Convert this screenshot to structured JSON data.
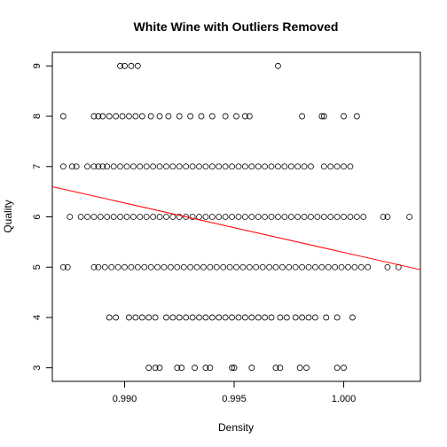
{
  "chart_data": {
    "type": "scatter",
    "title": "White Wine with Outliers Removed",
    "xlabel": "Density",
    "ylabel": "Quality",
    "xlim": [
      0.9867,
      1.0035
    ],
    "ylim": [
      2.73,
      9.27
    ],
    "xticks": [
      0.99,
      0.995,
      1.0
    ],
    "xtick_labels": [
      "0.990",
      "0.995",
      "1.000"
    ],
    "yticks": [
      3,
      4,
      5,
      6,
      7,
      8,
      9
    ],
    "ytick_labels": [
      "3",
      "4",
      "5",
      "6",
      "7",
      "8",
      "9"
    ],
    "grid": false,
    "legend": "none",
    "point_color": "#000000",
    "line_color": "#ff0000",
    "regression_line": {
      "x": [
        0.9867,
        1.0035
      ],
      "y": [
        6.6,
        4.95
      ]
    },
    "points": [
      {
        "x": 0.9898,
        "y": 9
      },
      {
        "x": 0.99,
        "y": 9
      },
      {
        "x": 0.9903,
        "y": 9
      },
      {
        "x": 0.9906,
        "y": 9
      },
      {
        "x": 0.997,
        "y": 9
      },
      {
        "x": 0.9872,
        "y": 8
      },
      {
        "x": 0.9886,
        "y": 8
      },
      {
        "x": 0.9888,
        "y": 8
      },
      {
        "x": 0.989,
        "y": 8
      },
      {
        "x": 0.9893,
        "y": 8
      },
      {
        "x": 0.9896,
        "y": 8
      },
      {
        "x": 0.9899,
        "y": 8
      },
      {
        "x": 0.9902,
        "y": 8
      },
      {
        "x": 0.9905,
        "y": 8
      },
      {
        "x": 0.9908,
        "y": 8
      },
      {
        "x": 0.9912,
        "y": 8
      },
      {
        "x": 0.9916,
        "y": 8
      },
      {
        "x": 0.992,
        "y": 8
      },
      {
        "x": 0.9925,
        "y": 8
      },
      {
        "x": 0.993,
        "y": 8
      },
      {
        "x": 0.9935,
        "y": 8
      },
      {
        "x": 0.994,
        "y": 8
      },
      {
        "x": 0.9946,
        "y": 8
      },
      {
        "x": 0.9951,
        "y": 8
      },
      {
        "x": 0.9955,
        "y": 8
      },
      {
        "x": 0.9957,
        "y": 8
      },
      {
        "x": 0.9981,
        "y": 8
      },
      {
        "x": 0.999,
        "y": 8
      },
      {
        "x": 0.9991,
        "y": 8
      },
      {
        "x": 1.0,
        "y": 8
      },
      {
        "x": 1.0006,
        "y": 8
      },
      {
        "x": 0.9872,
        "y": 7
      },
      {
        "x": 0.9876,
        "y": 7
      },
      {
        "x": 0.9878,
        "y": 7
      },
      {
        "x": 0.9883,
        "y": 7
      },
      {
        "x": 0.9886,
        "y": 7
      },
      {
        "x": 0.9888,
        "y": 7
      },
      {
        "x": 0.989,
        "y": 7
      },
      {
        "x": 0.9892,
        "y": 7
      },
      {
        "x": 0.9895,
        "y": 7
      },
      {
        "x": 0.9898,
        "y": 7
      },
      {
        "x": 0.9901,
        "y": 7
      },
      {
        "x": 0.9904,
        "y": 7
      },
      {
        "x": 0.9907,
        "y": 7
      },
      {
        "x": 0.991,
        "y": 7
      },
      {
        "x": 0.9913,
        "y": 7
      },
      {
        "x": 0.9916,
        "y": 7
      },
      {
        "x": 0.9919,
        "y": 7
      },
      {
        "x": 0.9922,
        "y": 7
      },
      {
        "x": 0.9925,
        "y": 7
      },
      {
        "x": 0.9928,
        "y": 7
      },
      {
        "x": 0.9931,
        "y": 7
      },
      {
        "x": 0.9934,
        "y": 7
      },
      {
        "x": 0.9937,
        "y": 7
      },
      {
        "x": 0.994,
        "y": 7
      },
      {
        "x": 0.9943,
        "y": 7
      },
      {
        "x": 0.9946,
        "y": 7
      },
      {
        "x": 0.9949,
        "y": 7
      },
      {
        "x": 0.9952,
        "y": 7
      },
      {
        "x": 0.9955,
        "y": 7
      },
      {
        "x": 0.9958,
        "y": 7
      },
      {
        "x": 0.9961,
        "y": 7
      },
      {
        "x": 0.9964,
        "y": 7
      },
      {
        "x": 0.9967,
        "y": 7
      },
      {
        "x": 0.997,
        "y": 7
      },
      {
        "x": 0.9973,
        "y": 7
      },
      {
        "x": 0.9976,
        "y": 7
      },
      {
        "x": 0.9979,
        "y": 7
      },
      {
        "x": 0.9982,
        "y": 7
      },
      {
        "x": 0.9985,
        "y": 7
      },
      {
        "x": 0.9991,
        "y": 7
      },
      {
        "x": 0.9994,
        "y": 7
      },
      {
        "x": 0.9997,
        "y": 7
      },
      {
        "x": 1.0,
        "y": 7
      },
      {
        "x": 1.0003,
        "y": 7
      },
      {
        "x": 0.9875,
        "y": 6
      },
      {
        "x": 0.988,
        "y": 6
      },
      {
        "x": 0.9883,
        "y": 6
      },
      {
        "x": 0.9886,
        "y": 6
      },
      {
        "x": 0.9889,
        "y": 6
      },
      {
        "x": 0.9892,
        "y": 6
      },
      {
        "x": 0.9895,
        "y": 6
      },
      {
        "x": 0.9898,
        "y": 6
      },
      {
        "x": 0.9901,
        "y": 6
      },
      {
        "x": 0.9904,
        "y": 6
      },
      {
        "x": 0.9907,
        "y": 6
      },
      {
        "x": 0.991,
        "y": 6
      },
      {
        "x": 0.9913,
        "y": 6
      },
      {
        "x": 0.9916,
        "y": 6
      },
      {
        "x": 0.9919,
        "y": 6
      },
      {
        "x": 0.9922,
        "y": 6
      },
      {
        "x": 0.9925,
        "y": 6
      },
      {
        "x": 0.9928,
        "y": 6
      },
      {
        "x": 0.9931,
        "y": 6
      },
      {
        "x": 0.9934,
        "y": 6
      },
      {
        "x": 0.9937,
        "y": 6
      },
      {
        "x": 0.994,
        "y": 6
      },
      {
        "x": 0.9943,
        "y": 6
      },
      {
        "x": 0.9946,
        "y": 6
      },
      {
        "x": 0.9949,
        "y": 6
      },
      {
        "x": 0.9952,
        "y": 6
      },
      {
        "x": 0.9955,
        "y": 6
      },
      {
        "x": 0.9958,
        "y": 6
      },
      {
        "x": 0.9961,
        "y": 6
      },
      {
        "x": 0.9964,
        "y": 6
      },
      {
        "x": 0.9967,
        "y": 6
      },
      {
        "x": 0.997,
        "y": 6
      },
      {
        "x": 0.9973,
        "y": 6
      },
      {
        "x": 0.9976,
        "y": 6
      },
      {
        "x": 0.9979,
        "y": 6
      },
      {
        "x": 0.9982,
        "y": 6
      },
      {
        "x": 0.9985,
        "y": 6
      },
      {
        "x": 0.9988,
        "y": 6
      },
      {
        "x": 0.9991,
        "y": 6
      },
      {
        "x": 0.9994,
        "y": 6
      },
      {
        "x": 0.9997,
        "y": 6
      },
      {
        "x": 1.0,
        "y": 6
      },
      {
        "x": 1.0003,
        "y": 6
      },
      {
        "x": 1.0006,
        "y": 6
      },
      {
        "x": 1.0009,
        "y": 6
      },
      {
        "x": 1.0018,
        "y": 6
      },
      {
        "x": 1.002,
        "y": 6
      },
      {
        "x": 1.003,
        "y": 6
      },
      {
        "x": 0.9872,
        "y": 5
      },
      {
        "x": 0.9874,
        "y": 5
      },
      {
        "x": 0.9886,
        "y": 5
      },
      {
        "x": 0.9888,
        "y": 5
      },
      {
        "x": 0.9891,
        "y": 5
      },
      {
        "x": 0.9894,
        "y": 5
      },
      {
        "x": 0.9897,
        "y": 5
      },
      {
        "x": 0.99,
        "y": 5
      },
      {
        "x": 0.9903,
        "y": 5
      },
      {
        "x": 0.9906,
        "y": 5
      },
      {
        "x": 0.9909,
        "y": 5
      },
      {
        "x": 0.9912,
        "y": 5
      },
      {
        "x": 0.9915,
        "y": 5
      },
      {
        "x": 0.9918,
        "y": 5
      },
      {
        "x": 0.9921,
        "y": 5
      },
      {
        "x": 0.9924,
        "y": 5
      },
      {
        "x": 0.9927,
        "y": 5
      },
      {
        "x": 0.993,
        "y": 5
      },
      {
        "x": 0.9933,
        "y": 5
      },
      {
        "x": 0.9936,
        "y": 5
      },
      {
        "x": 0.9939,
        "y": 5
      },
      {
        "x": 0.9942,
        "y": 5
      },
      {
        "x": 0.9945,
        "y": 5
      },
      {
        "x": 0.9948,
        "y": 5
      },
      {
        "x": 0.9951,
        "y": 5
      },
      {
        "x": 0.9954,
        "y": 5
      },
      {
        "x": 0.9957,
        "y": 5
      },
      {
        "x": 0.996,
        "y": 5
      },
      {
        "x": 0.9963,
        "y": 5
      },
      {
        "x": 0.9966,
        "y": 5
      },
      {
        "x": 0.9969,
        "y": 5
      },
      {
        "x": 0.9972,
        "y": 5
      },
      {
        "x": 0.9975,
        "y": 5
      },
      {
        "x": 0.9978,
        "y": 5
      },
      {
        "x": 0.9981,
        "y": 5
      },
      {
        "x": 0.9984,
        "y": 5
      },
      {
        "x": 0.9987,
        "y": 5
      },
      {
        "x": 0.999,
        "y": 5
      },
      {
        "x": 0.9993,
        "y": 5
      },
      {
        "x": 0.9996,
        "y": 5
      },
      {
        "x": 0.9999,
        "y": 5
      },
      {
        "x": 1.0002,
        "y": 5
      },
      {
        "x": 1.0005,
        "y": 5
      },
      {
        "x": 1.0008,
        "y": 5
      },
      {
        "x": 1.0011,
        "y": 5
      },
      {
        "x": 1.002,
        "y": 5
      },
      {
        "x": 1.0025,
        "y": 5
      },
      {
        "x": 0.9893,
        "y": 4
      },
      {
        "x": 0.9896,
        "y": 4
      },
      {
        "x": 0.9902,
        "y": 4
      },
      {
        "x": 0.9905,
        "y": 4
      },
      {
        "x": 0.9908,
        "y": 4
      },
      {
        "x": 0.9911,
        "y": 4
      },
      {
        "x": 0.9914,
        "y": 4
      },
      {
        "x": 0.9919,
        "y": 4
      },
      {
        "x": 0.9922,
        "y": 4
      },
      {
        "x": 0.9925,
        "y": 4
      },
      {
        "x": 0.9928,
        "y": 4
      },
      {
        "x": 0.9931,
        "y": 4
      },
      {
        "x": 0.9934,
        "y": 4
      },
      {
        "x": 0.9937,
        "y": 4
      },
      {
        "x": 0.994,
        "y": 4
      },
      {
        "x": 0.9943,
        "y": 4
      },
      {
        "x": 0.9946,
        "y": 4
      },
      {
        "x": 0.9949,
        "y": 4
      },
      {
        "x": 0.9952,
        "y": 4
      },
      {
        "x": 0.9955,
        "y": 4
      },
      {
        "x": 0.9958,
        "y": 4
      },
      {
        "x": 0.9961,
        "y": 4
      },
      {
        "x": 0.9964,
        "y": 4
      },
      {
        "x": 0.9967,
        "y": 4
      },
      {
        "x": 0.9971,
        "y": 4
      },
      {
        "x": 0.9974,
        "y": 4
      },
      {
        "x": 0.9978,
        "y": 4
      },
      {
        "x": 0.9981,
        "y": 4
      },
      {
        "x": 0.9984,
        "y": 4
      },
      {
        "x": 0.9987,
        "y": 4
      },
      {
        "x": 0.9992,
        "y": 4
      },
      {
        "x": 0.9997,
        "y": 4
      },
      {
        "x": 1.0004,
        "y": 4
      },
      {
        "x": 0.9911,
        "y": 3
      },
      {
        "x": 0.9914,
        "y": 3
      },
      {
        "x": 0.9916,
        "y": 3
      },
      {
        "x": 0.9924,
        "y": 3
      },
      {
        "x": 0.9926,
        "y": 3
      },
      {
        "x": 0.9932,
        "y": 3
      },
      {
        "x": 0.9937,
        "y": 3
      },
      {
        "x": 0.9939,
        "y": 3
      },
      {
        "x": 0.9949,
        "y": 3
      },
      {
        "x": 0.995,
        "y": 3
      },
      {
        "x": 0.9958,
        "y": 3
      },
      {
        "x": 0.9969,
        "y": 3
      },
      {
        "x": 0.9971,
        "y": 3
      },
      {
        "x": 0.998,
        "y": 3
      },
      {
        "x": 0.9983,
        "y": 3
      },
      {
        "x": 0.9997,
        "y": 3
      },
      {
        "x": 1.0,
        "y": 3
      }
    ]
  }
}
